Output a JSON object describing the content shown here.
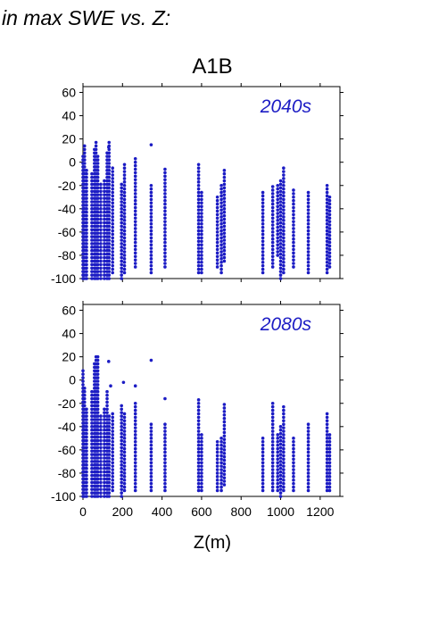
{
  "figure": {
    "heading": "in max SWE vs. Z:",
    "scenario": "A1B",
    "xlabel": "Z(m)"
  },
  "colors": {
    "points": "#1c1cc4",
    "frame": "#000000"
  },
  "chart_data": [
    {
      "type": "scatter",
      "panel_label": "2040s",
      "xlim": [
        0,
        1300
      ],
      "ylim": [
        -100,
        65
      ],
      "xticks": [
        0,
        200,
        400,
        600,
        800,
        1000,
        1200
      ],
      "yticks": [
        -100,
        -80,
        -60,
        -40,
        -20,
        0,
        20,
        40,
        60
      ],
      "columns": [
        {
          "x": 0,
          "ymin": -100,
          "ymax": 5
        },
        {
          "x": 8,
          "ymin": -100,
          "ymax": 16
        },
        {
          "x": 18,
          "ymin": -100,
          "ymax": -5
        },
        {
          "x": 45,
          "ymin": -100,
          "ymax": -10
        },
        {
          "x": 58,
          "ymin": -100,
          "ymax": 12
        },
        {
          "x": 66,
          "ymin": -100,
          "ymax": 18
        },
        {
          "x": 75,
          "ymin": -100,
          "ymax": 5
        },
        {
          "x": 90,
          "ymin": -100,
          "ymax": -18
        },
        {
          "x": 108,
          "ymin": -100,
          "ymax": -15
        },
        {
          "x": 122,
          "ymin": -100,
          "ymax": 8
        },
        {
          "x": 132,
          "ymin": -100,
          "ymax": 17
        },
        {
          "x": 150,
          "ymin": -95,
          "ymax": -5
        },
        {
          "x": 195,
          "ymin": -100,
          "ymax": -18
        },
        {
          "x": 210,
          "ymin": -95,
          "ymax": -2
        },
        {
          "x": 265,
          "ymin": -90,
          "ymax": 3
        },
        {
          "x": 345,
          "ymin": -95,
          "ymax": -20
        },
        {
          "x": 415,
          "ymin": -90,
          "ymax": -5
        },
        {
          "x": 585,
          "ymin": -95,
          "ymax": -2
        },
        {
          "x": 600,
          "ymin": -95,
          "ymax": -25
        },
        {
          "x": 680,
          "ymin": -90,
          "ymax": -30
        },
        {
          "x": 700,
          "ymin": -95,
          "ymax": -20
        },
        {
          "x": 715,
          "ymin": -85,
          "ymax": -5
        },
        {
          "x": 910,
          "ymin": -95,
          "ymax": -25
        },
        {
          "x": 960,
          "ymin": -90,
          "ymax": -20
        },
        {
          "x": 985,
          "ymin": -80,
          "ymax": -20
        },
        {
          "x": 1000,
          "ymin": -100,
          "ymax": -15
        },
        {
          "x": 1015,
          "ymin": -95,
          "ymax": -5
        },
        {
          "x": 1065,
          "ymin": -90,
          "ymax": -22
        },
        {
          "x": 1140,
          "ymin": -95,
          "ymax": -25
        },
        {
          "x": 1235,
          "ymin": -95,
          "ymax": -20
        },
        {
          "x": 1248,
          "ymin": -90,
          "ymax": -30
        }
      ],
      "isolated_points": [
        {
          "x": 345,
          "y": 15
        },
        {
          "x": 130,
          "y": 13
        }
      ]
    },
    {
      "type": "scatter",
      "panel_label": "2080s",
      "xlim": [
        0,
        1300
      ],
      "ylim": [
        -100,
        65
      ],
      "xticks": [
        0,
        200,
        400,
        600,
        800,
        1000,
        1200
      ],
      "yticks": [
        -100,
        -80,
        -60,
        -40,
        -20,
        0,
        20,
        40,
        60
      ],
      "columns": [
        {
          "x": 0,
          "ymin": -100,
          "ymax": 10
        },
        {
          "x": 8,
          "ymin": -100,
          "ymax": -5
        },
        {
          "x": 18,
          "ymin": -100,
          "ymax": -25
        },
        {
          "x": 45,
          "ymin": -100,
          "ymax": -10
        },
        {
          "x": 58,
          "ymin": -100,
          "ymax": 14
        },
        {
          "x": 66,
          "ymin": -100,
          "ymax": 20
        },
        {
          "x": 75,
          "ymin": -100,
          "ymax": 20
        },
        {
          "x": 90,
          "ymin": -100,
          "ymax": -30
        },
        {
          "x": 108,
          "ymin": -100,
          "ymax": -25
        },
        {
          "x": 122,
          "ymin": -100,
          "ymax": -10
        },
        {
          "x": 132,
          "ymin": -100,
          "ymax": -30
        },
        {
          "x": 150,
          "ymin": -95,
          "ymax": -28
        },
        {
          "x": 195,
          "ymin": -100,
          "ymax": -20
        },
        {
          "x": 210,
          "ymin": -95,
          "ymax": -28
        },
        {
          "x": 265,
          "ymin": -95,
          "ymax": -20
        },
        {
          "x": 345,
          "ymin": -95,
          "ymax": -38
        },
        {
          "x": 415,
          "ymin": -95,
          "ymax": -38
        },
        {
          "x": 585,
          "ymin": -95,
          "ymax": -15
        },
        {
          "x": 600,
          "ymin": -95,
          "ymax": -45
        },
        {
          "x": 680,
          "ymin": -95,
          "ymax": -52
        },
        {
          "x": 700,
          "ymin": -95,
          "ymax": -48
        },
        {
          "x": 715,
          "ymin": -90,
          "ymax": -20
        },
        {
          "x": 910,
          "ymin": -95,
          "ymax": -50
        },
        {
          "x": 960,
          "ymin": -95,
          "ymax": -18
        },
        {
          "x": 985,
          "ymin": -95,
          "ymax": -45
        },
        {
          "x": 1000,
          "ymin": -100,
          "ymax": -40
        },
        {
          "x": 1015,
          "ymin": -95,
          "ymax": -22
        },
        {
          "x": 1065,
          "ymin": -95,
          "ymax": -48
        },
        {
          "x": 1140,
          "ymin": -95,
          "ymax": -38
        },
        {
          "x": 1235,
          "ymin": -95,
          "ymax": -28
        },
        {
          "x": 1248,
          "ymin": -95,
          "ymax": -45
        }
      ],
      "isolated_points": [
        {
          "x": 345,
          "y": 17
        },
        {
          "x": 130,
          "y": 16
        },
        {
          "x": 140,
          "y": -5
        },
        {
          "x": 205,
          "y": -2
        },
        {
          "x": 265,
          "y": -5
        },
        {
          "x": 415,
          "y": -16
        }
      ]
    }
  ]
}
